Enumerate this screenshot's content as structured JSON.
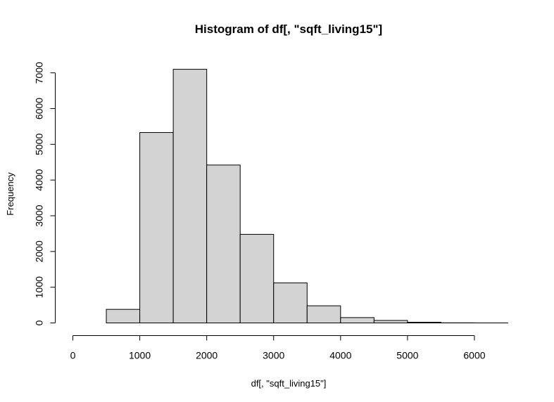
{
  "chart_data": {
    "type": "bar",
    "title": "Histogram of df[, \"sqft_living15\"]",
    "xlabel": "df[, \"sqft_living15\"]",
    "ylabel": "Frequency",
    "xlim": [
      0,
      6500
    ],
    "ylim": [
      0,
      7200
    ],
    "x_ticks": [
      0,
      1000,
      2000,
      3000,
      4000,
      5000,
      6000
    ],
    "y_ticks": [
      0,
      1000,
      2000,
      3000,
      4000,
      5000,
      6000,
      7000
    ],
    "bin_width": 500,
    "bins": [
      {
        "start": 0,
        "end": 500,
        "count": 0
      },
      {
        "start": 500,
        "end": 1000,
        "count": 380
      },
      {
        "start": 1000,
        "end": 1500,
        "count": 5330
      },
      {
        "start": 1500,
        "end": 2000,
        "count": 7100
      },
      {
        "start": 2000,
        "end": 2500,
        "count": 4420
      },
      {
        "start": 2500,
        "end": 3000,
        "count": 2480
      },
      {
        "start": 3000,
        "end": 3500,
        "count": 1120
      },
      {
        "start": 3500,
        "end": 4000,
        "count": 480
      },
      {
        "start": 4000,
        "end": 4500,
        "count": 150
      },
      {
        "start": 4500,
        "end": 5000,
        "count": 70
      },
      {
        "start": 5000,
        "end": 5500,
        "count": 20
      },
      {
        "start": 5500,
        "end": 6000,
        "count": 3
      },
      {
        "start": 6000,
        "end": 6500,
        "count": 1
      }
    ],
    "bar_fill": "#d3d3d3",
    "bar_stroke": "#000000",
    "grid": false,
    "legend": "none"
  }
}
